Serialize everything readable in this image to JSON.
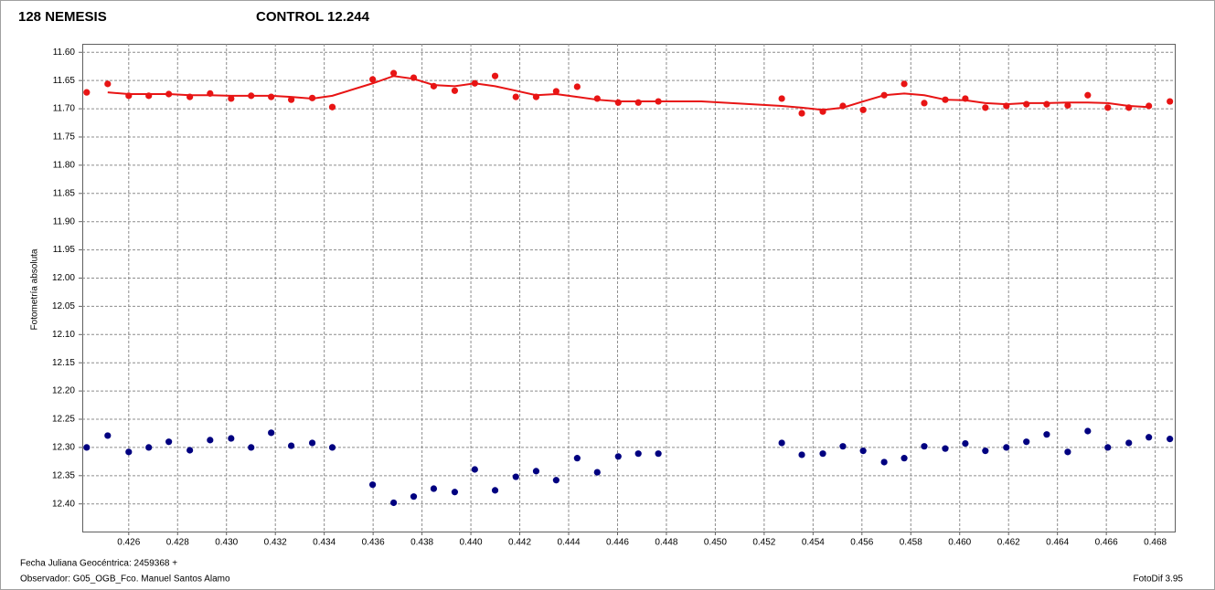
{
  "chart_data": {
    "type": "scatter",
    "title": "128 NEMESIS",
    "subtitle": "CONTROL 12.244",
    "y_label": "Fotometría absoluta",
    "x_label": "Fecha Juliana Geocéntrica: 2459368 +",
    "observer": "Observador: G05_OGB_Fco. Manuel Santos Alamo",
    "software": "FotoDif 3.95",
    "y_inverted": true,
    "grid": true,
    "xlim": [
      0.4241,
      0.4688
    ],
    "ylim": [
      11.585,
      12.449
    ],
    "xticks": [
      0.426,
      0.428,
      {
        "value": 0.43,
        "label": "0.430"
      },
      0.432,
      0.434,
      0.436,
      0.438,
      {
        "value": 0.44,
        "label": "0.440"
      },
      0.442,
      0.444,
      0.446,
      0.448,
      {
        "value": 0.45,
        "label": "0.450"
      },
      0.452,
      0.454,
      0.456,
      0.458,
      {
        "value": 0.46,
        "label": "0.460"
      },
      0.462,
      0.464,
      0.466,
      0.468
    ],
    "yticks": [
      {
        "value": 11.6,
        "label": "11.60"
      },
      11.65,
      {
        "value": 11.7,
        "label": "11.70"
      },
      11.75,
      {
        "value": 11.8,
        "label": "11.80"
      },
      11.85,
      {
        "value": 11.9,
        "label": "11.90"
      },
      11.95,
      {
        "value": 12.0,
        "label": "12.00"
      },
      12.05,
      {
        "value": 12.1,
        "label": "12.10"
      },
      12.15,
      {
        "value": 12.2,
        "label": "12.20"
      },
      12.25,
      {
        "value": 12.3,
        "label": "12.30"
      },
      12.35,
      {
        "value": 12.4,
        "label": "12.40"
      }
    ],
    "x": [
      0.42428,
      0.42514,
      0.426,
      0.42682,
      0.42764,
      0.4285,
      0.42933,
      0.43019,
      0.43101,
      0.43183,
      0.43265,
      0.43351,
      0.43433,
      0.43598,
      0.43684,
      0.43766,
      0.43848,
      0.43934,
      0.44016,
      0.44099,
      0.44184,
      0.44267,
      0.44349,
      0.44435,
      0.44517,
      0.44603,
      0.44685,
      0.44767,
      0.45272,
      0.45354,
      0.4544,
      0.45522,
      0.45605,
      0.45691,
      0.45773,
      0.45855,
      0.45941,
      0.46023,
      0.46105,
      0.46191,
      0.46273,
      0.46356,
      0.46442,
      0.46524,
      0.46606,
      0.46692,
      0.46774,
      0.4686
    ],
    "series": [
      {
        "name": "128 NEMESIS",
        "color": "#e81414",
        "values": [
          11.671,
          11.656,
          11.677,
          11.677,
          11.674,
          11.679,
          11.673,
          11.682,
          11.677,
          11.679,
          11.684,
          11.681,
          11.697,
          11.648,
          11.637,
          11.645,
          11.66,
          11.668,
          11.655,
          11.642,
          11.679,
          11.679,
          11.669,
          11.661,
          11.682,
          11.689,
          11.689,
          11.687,
          11.682,
          11.708,
          11.705,
          11.695,
          11.702,
          11.676,
          11.656,
          11.69,
          11.684,
          11.682,
          11.698,
          11.695,
          11.692,
          11.692,
          11.694,
          11.676,
          11.698,
          11.698,
          11.695,
          11.687
        ]
      },
      {
        "name": "CONTROL 12.244",
        "color": "#000080",
        "values": [
          12.3,
          12.279,
          12.308,
          12.3,
          12.29,
          12.305,
          12.287,
          12.284,
          12.3,
          12.274,
          12.297,
          12.292,
          12.3,
          12.366,
          12.398,
          12.387,
          12.373,
          12.379,
          12.339,
          12.376,
          12.352,
          12.342,
          12.358,
          12.319,
          12.344,
          12.316,
          12.311,
          12.311,
          12.292,
          12.313,
          12.311,
          12.298,
          12.306,
          12.326,
          12.319,
          12.298,
          12.302,
          12.293,
          12.306,
          12.3,
          12.29,
          12.277,
          12.308,
          12.271,
          12.3,
          12.292,
          12.282,
          12.285
        ]
      }
    ],
    "fit_line": {
      "color": "#e81414",
      "x": [
        0.42514,
        0.426,
        0.42682,
        0.42764,
        0.4285,
        0.42933,
        0.43019,
        0.43101,
        0.43183,
        0.43265,
        0.43351,
        0.43433,
        0.43598,
        0.43684,
        0.43766,
        0.43848,
        0.43934,
        0.44016,
        0.44099,
        0.44184,
        0.44267,
        0.44349,
        0.44435,
        0.44517,
        0.44603,
        0.44685,
        0.44767,
        0.44943,
        0.45272,
        0.45354,
        0.4544,
        0.45522,
        0.45605,
        0.45691,
        0.45773,
        0.45855,
        0.45941,
        0.46023,
        0.46105,
        0.46191,
        0.46273,
        0.46356,
        0.46442,
        0.46524,
        0.46606,
        0.46692,
        0.46774
      ],
      "values": [
        11.671,
        11.674,
        11.674,
        11.674,
        11.676,
        11.676,
        11.677,
        11.677,
        11.677,
        11.679,
        11.682,
        11.677,
        11.655,
        11.642,
        11.647,
        11.658,
        11.66,
        11.655,
        11.66,
        11.668,
        11.676,
        11.674,
        11.679,
        11.684,
        11.687,
        11.687,
        11.687,
        11.687,
        11.695,
        11.698,
        11.702,
        11.698,
        11.687,
        11.676,
        11.673,
        11.676,
        11.684,
        11.685,
        11.69,
        11.692,
        11.69,
        11.69,
        11.689,
        11.689,
        11.69,
        11.695,
        11.697
      ]
    }
  }
}
